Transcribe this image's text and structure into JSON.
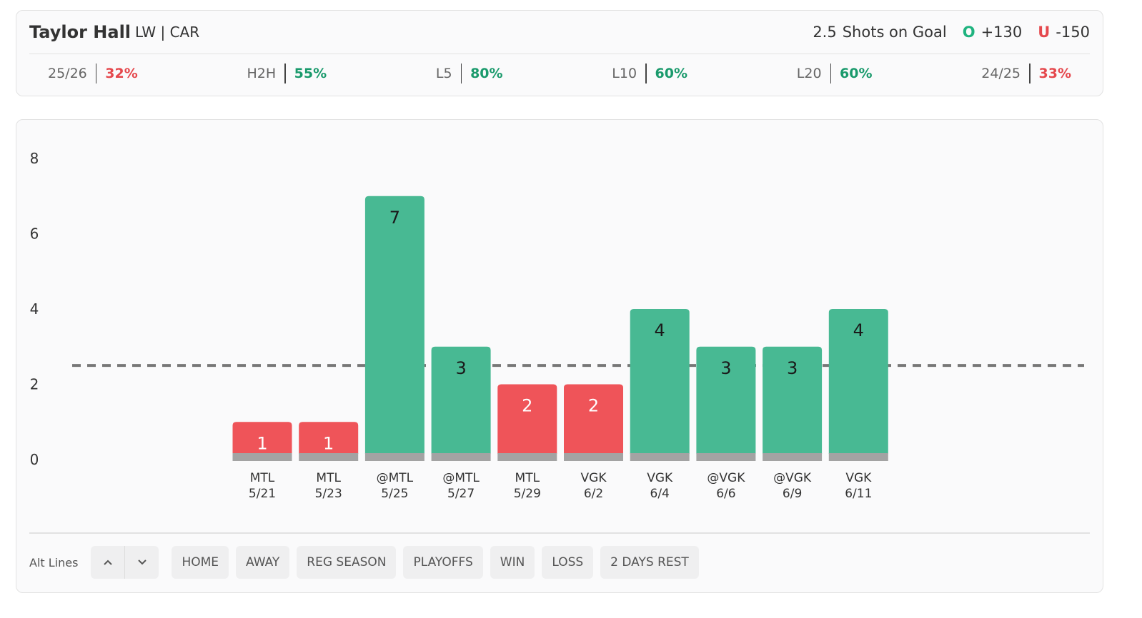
{
  "header": {
    "player": "Taylor Hall",
    "position": "LW | CAR",
    "prop_name": "Shots on Goal",
    "over_label": "O",
    "over_odds": "+130",
    "under_label": "U",
    "under_odds": "-150"
  },
  "stats": [
    {
      "label": "25/26",
      "value": "32%",
      "color": "#e5484d"
    },
    {
      "label": "H2H",
      "value": "55%",
      "color": "#1a9a6c"
    },
    {
      "label": "L5",
      "value": "80%",
      "color": "#1a9a6c"
    },
    {
      "label": "L10",
      "value": "60%",
      "color": "#1a9a6c"
    },
    {
      "label": "L20",
      "value": "60%",
      "color": "#1a9a6c"
    },
    {
      "label": "24/25",
      "value": "33%",
      "color": "#e5484d"
    }
  ],
  "chart_data": {
    "type": "bar",
    "categories": [
      "MTL",
      "MTL",
      "@MTL",
      "@MTL",
      "MTL",
      "VGK",
      "VGK",
      "@VGK",
      "@VGK",
      "VGK"
    ],
    "dates": [
      "5/21",
      "5/23",
      "5/25",
      "5/27",
      "5/29",
      "6/2",
      "6/4",
      "6/6",
      "6/9",
      "6/11"
    ],
    "values": [
      1,
      1,
      7,
      3,
      2,
      2,
      4,
      3,
      3,
      4
    ],
    "threshold": 2.5,
    "over_color": "#48b993",
    "under_color": "#ef5459",
    "base_color": "#a3a3a3",
    "ylim": [
      0,
      8
    ],
    "yticks": [
      0,
      2,
      4,
      6,
      8
    ]
  },
  "controls": {
    "alt_lines": "Alt Lines",
    "filters": [
      "HOME",
      "AWAY",
      "REG SEASON",
      "PLAYOFFS",
      "WIN",
      "LOSS",
      "2 DAYS REST"
    ]
  }
}
